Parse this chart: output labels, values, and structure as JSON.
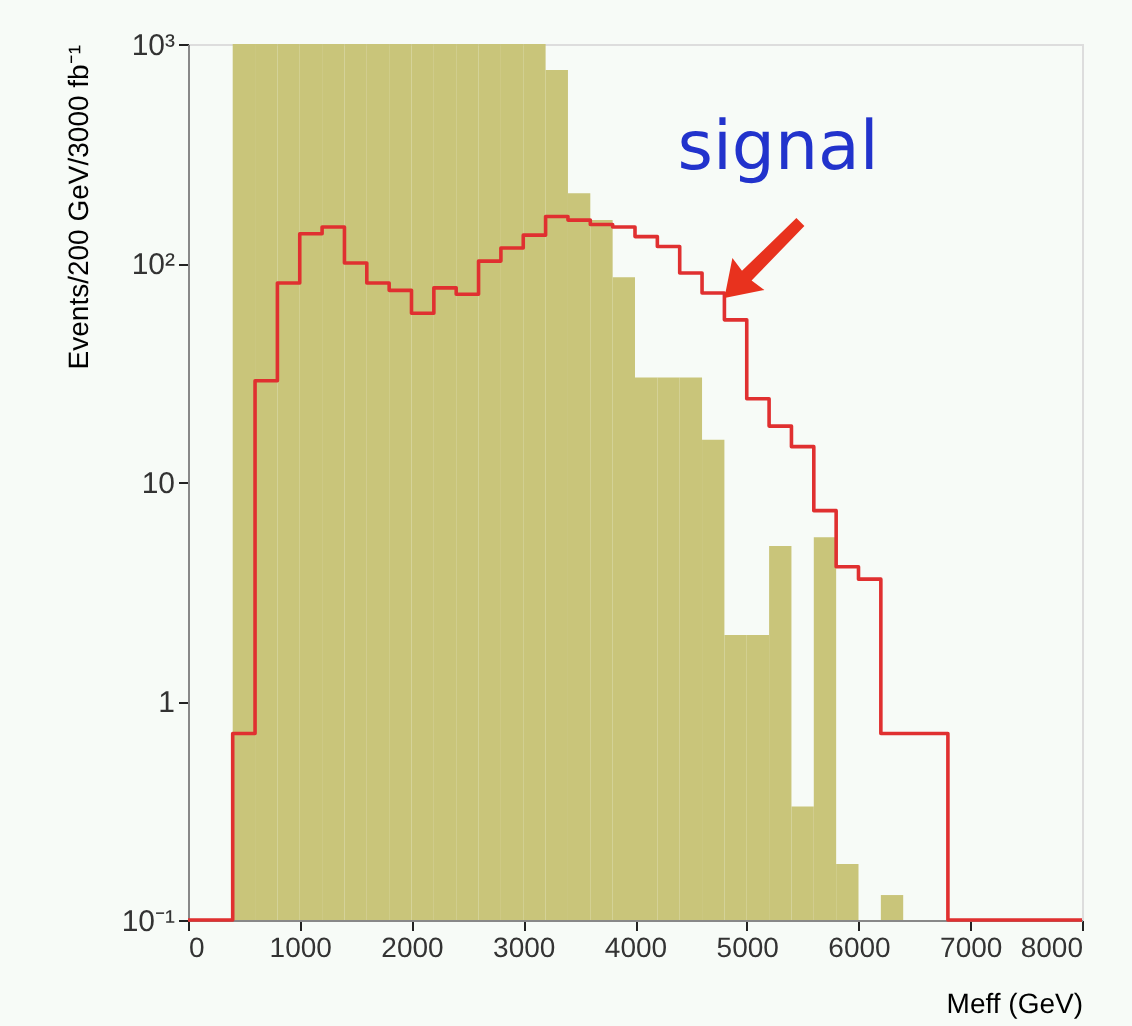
{
  "chart_data": {
    "type": "histogram",
    "xlabel": "Meff (GeV)",
    "ylabel": "Events/200 GeV/3000 fb⁻¹",
    "bins": [
      400,
      600,
      800,
      1000,
      1200,
      1400,
      1600,
      1800,
      2000,
      2200,
      2400,
      2600,
      2800,
      3000,
      3200,
      3400,
      3600,
      3800,
      4000,
      4200,
      4400,
      4600,
      4800,
      5000,
      5200,
      5400,
      5600,
      5800,
      6000,
      6200,
      6400,
      6600,
      6800
    ],
    "series": [
      {
        "type": "histogram",
        "color": "#c9c57a",
        "values": [
          1000,
          1000,
          1000,
          1000,
          1000,
          1000,
          1000,
          1000,
          1000,
          1000,
          1000,
          1000,
          1000,
          1000,
          760,
          208,
          157,
          86,
          30,
          30,
          30,
          15.6,
          2.0,
          2.0,
          5.1,
          0.33,
          5.6,
          0.18,
          null,
          0.13,
          null,
          null
        ]
      },
      {
        "type": "step",
        "color": "#e03030",
        "x": [
          0,
          400,
          600,
          800,
          1000,
          1200,
          1400,
          1600,
          1800,
          2000,
          2200,
          2400,
          2600,
          2800,
          3000,
          3200,
          3400,
          3600,
          3800,
          4000,
          4200,
          4400,
          4600,
          4800,
          5000,
          5200,
          5400,
          5600,
          5800,
          6000,
          6200,
          6400,
          6600,
          6800,
          8000
        ],
        "values": [
          0.1,
          0.71,
          29,
          81,
          136,
          146,
          100,
          81,
          75,
          59,
          77,
          72,
          102,
          117,
          134,
          163,
          157,
          150,
          146,
          132,
          119,
          90,
          73,
          55,
          24,
          18,
          14.5,
          7.4,
          4.1,
          3.6,
          0.71,
          0.71,
          0.71,
          0.1,
          0.1
        ]
      }
    ],
    "xlim": [
      0,
      8000
    ],
    "xticks": [
      0,
      1000,
      2000,
      3000,
      4000,
      5000,
      6000,
      7000,
      8000
    ],
    "ylim": [
      0.1,
      1000
    ],
    "yticks": [
      {
        "value": 0.1,
        "label": "10⁻¹"
      },
      1,
      10,
      {
        "value": 100,
        "label": "10²"
      },
      {
        "value": 1000,
        "label": "10³"
      }
    ],
    "log": true,
    "grid": false,
    "annotations": [
      "signal"
    ]
  }
}
